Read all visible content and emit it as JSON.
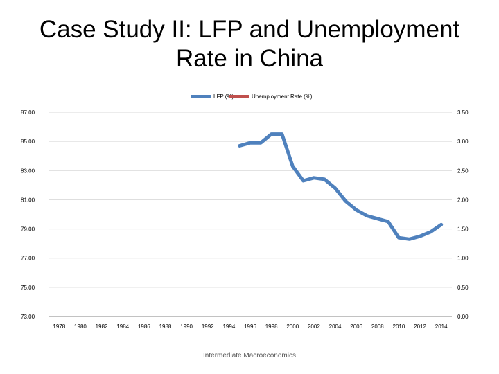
{
  "slide": {
    "title_line1": "Case Study II: LFP and Unemployment",
    "title_line2": "Rate in China",
    "footer": "Intermediate Macroeconomics"
  },
  "chart_data": {
    "type": "line",
    "legend": {
      "placement": "top",
      "entries": [
        "LFP (%)",
        "Unemployment Rate (%)"
      ]
    },
    "series": [
      {
        "name": "LFP (%)",
        "color": "#4f81bd",
        "axis": "left",
        "x": [
          1995,
          1996,
          1997,
          1998,
          1999,
          2000,
          2001,
          2002,
          2003,
          2004,
          2005,
          2006,
          2007,
          2008,
          2009,
          2010,
          2011,
          2012,
          2013,
          2014
        ],
        "values": [
          84.7,
          84.9,
          84.9,
          85.5,
          85.5,
          83.3,
          82.3,
          82.5,
          82.4,
          81.8,
          80.9,
          80.3,
          79.9,
          79.7,
          79.5,
          78.4,
          78.3,
          78.5,
          78.8,
          79.3
        ]
      },
      {
        "name": "Unemployment Rate (%)",
        "color": "#c0504d",
        "axis": "right",
        "x": [],
        "values": []
      }
    ],
    "x_ticks": [
      "1978",
      "1980",
      "1982",
      "1984",
      "1986",
      "1988",
      "1990",
      "1992",
      "1994",
      "1996",
      "1998",
      "2000",
      "2002",
      "2004",
      "2006",
      "2008",
      "2010",
      "2012",
      "2014"
    ],
    "xlim": [
      1977,
      2015
    ],
    "y_left_ticks": [
      "73.00",
      "75.00",
      "77.00",
      "79.00",
      "81.00",
      "83.00",
      "85.00",
      "87.00"
    ],
    "ylim_left": [
      73,
      87
    ],
    "y_right_ticks": [
      "0.00",
      "0.50",
      "1.00",
      "1.50",
      "2.00",
      "2.50",
      "3.00",
      "3.50"
    ],
    "ylim_right": [
      0,
      3.5
    ],
    "grid": true
  }
}
